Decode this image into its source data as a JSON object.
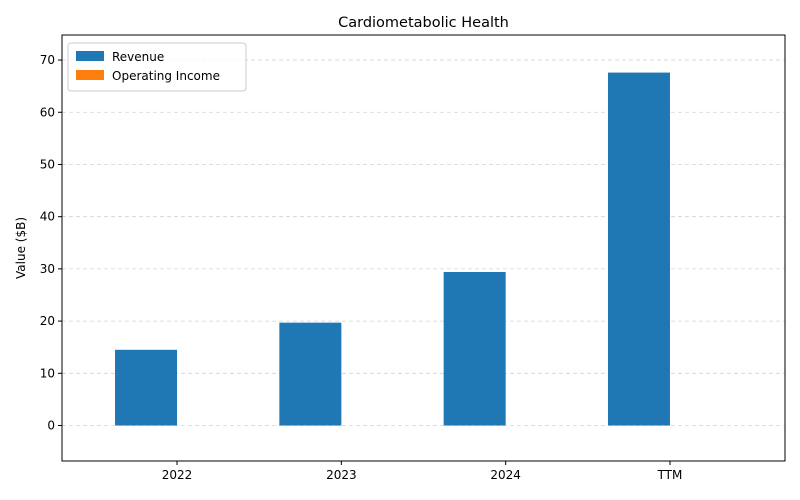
{
  "chart_data": {
    "type": "bar",
    "title": "Cardiometabolic Health",
    "xlabel": "",
    "ylabel": "Value ($B)",
    "categories": [
      "2022",
      "2023",
      "2024",
      "TTM"
    ],
    "series": [
      {
        "name": "Revenue",
        "values": [
          14.5,
          19.7,
          29.4,
          67.6
        ],
        "color": "#1f77b4"
      },
      {
        "name": "Operating Income",
        "values": [
          0,
          0,
          0,
          0
        ],
        "color": "#ff7f0e"
      }
    ],
    "ylim": [
      -6.8,
      74.8
    ],
    "yticks": [
      0,
      10,
      20,
      30,
      40,
      50,
      60,
      70
    ],
    "grid": "y-dashed",
    "legend": "top-left"
  }
}
